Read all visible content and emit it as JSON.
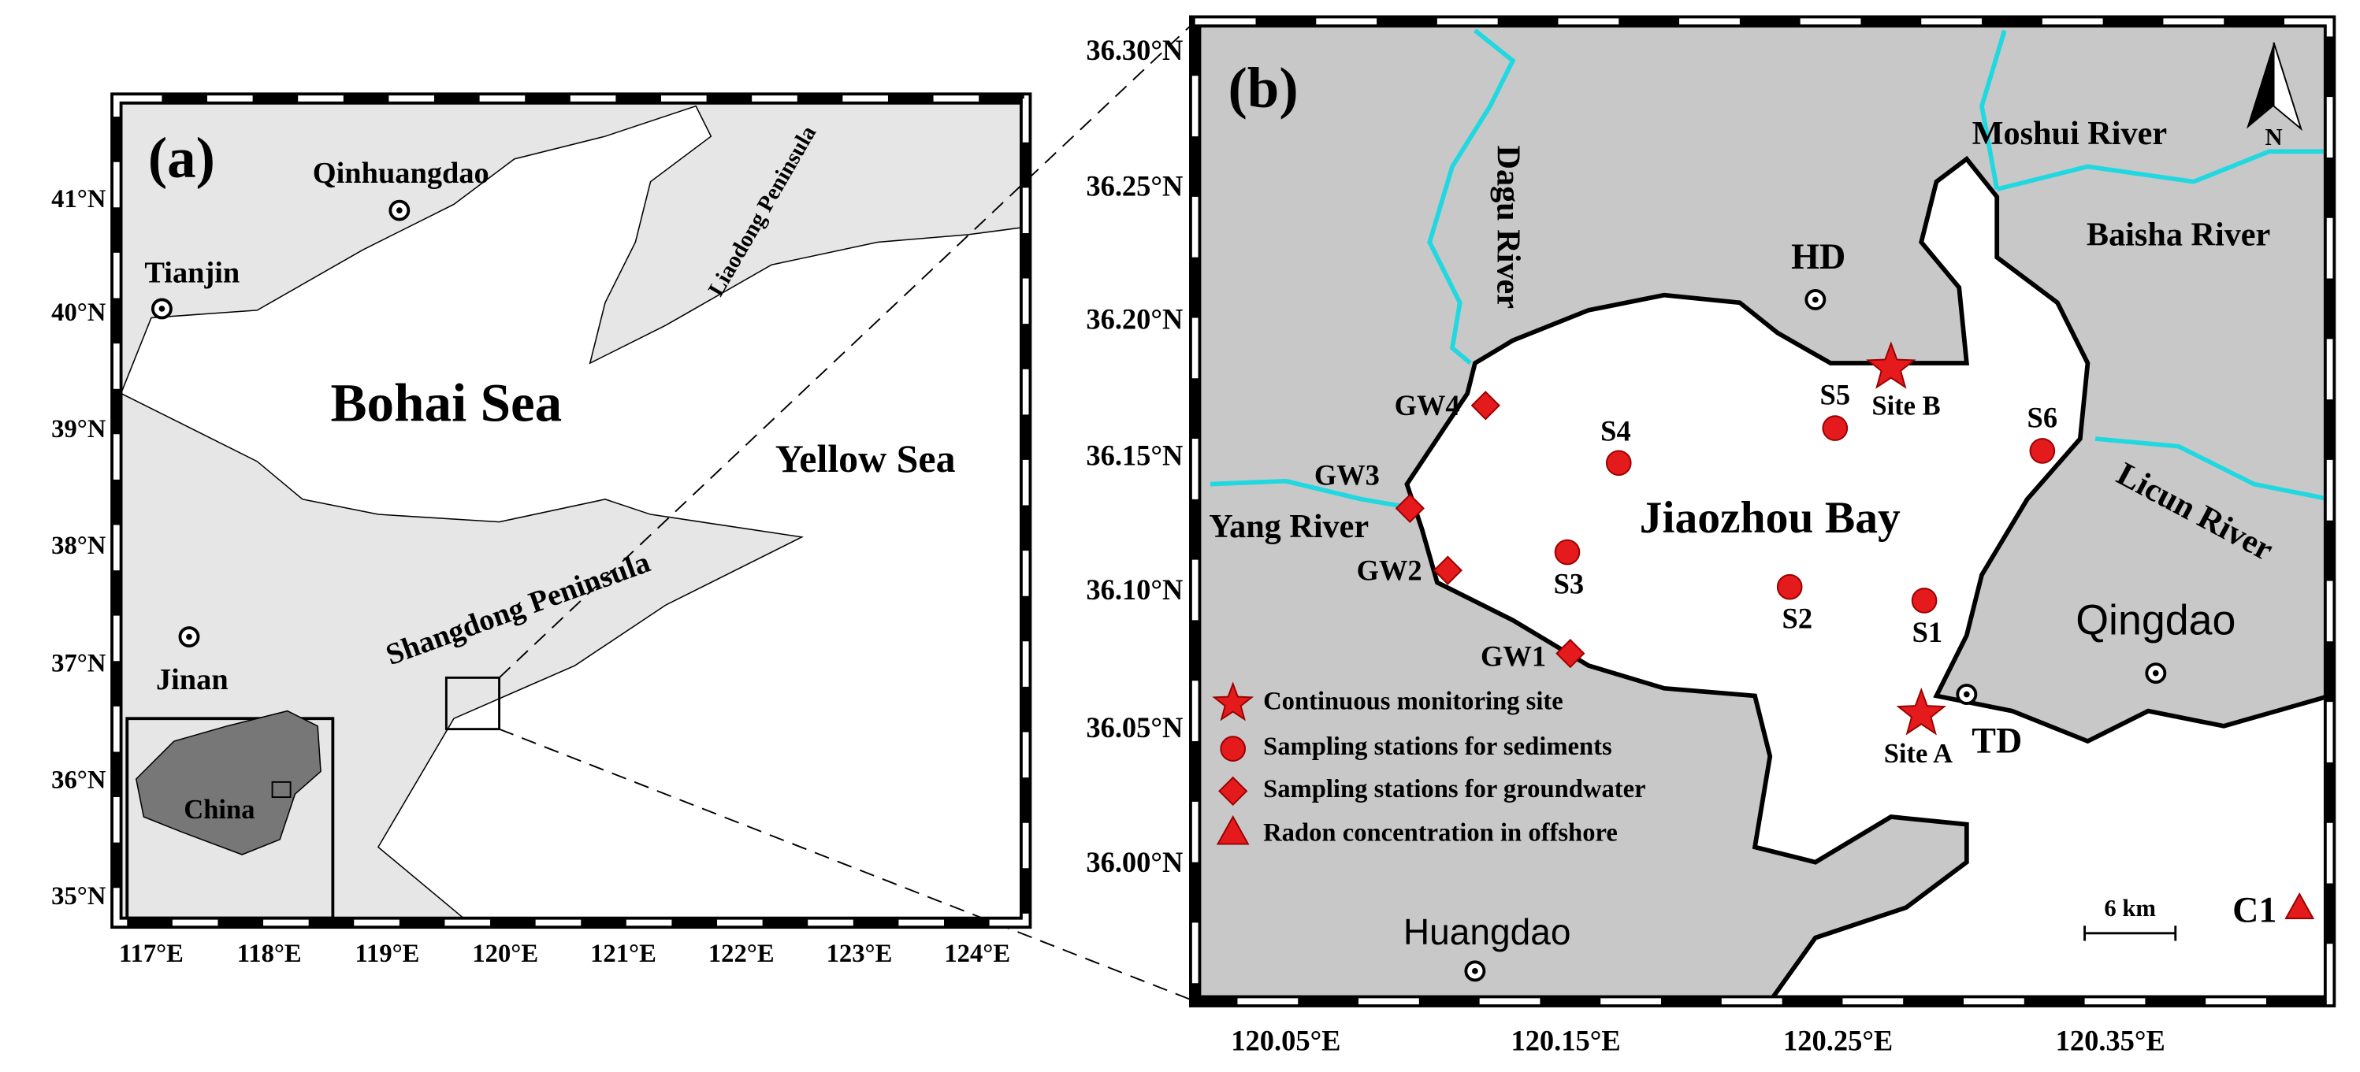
{
  "panel_a": {
    "label": "(a)",
    "lat_ticks": [
      "41°N",
      "40°N",
      "39°N",
      "38°N",
      "37°N",
      "36°N",
      "35°N"
    ],
    "lon_ticks": [
      "117°E",
      "118°E",
      "119°E",
      "120°E",
      "121°E",
      "122°E",
      "123°E",
      "124°E"
    ],
    "places": [
      "Qinhuangdao",
      "Tianjin",
      "Jinan"
    ],
    "seas": [
      "Bohai Sea",
      "Yellow Sea"
    ],
    "peninsulas": [
      "Liaodong Peninsula",
      "Shangdong Peninsula"
    ],
    "inset": "China"
  },
  "panel_b": {
    "label": "(b)",
    "lat_ticks": [
      "36.30°N",
      "36.25°N",
      "36.20°N",
      "36.15°N",
      "36.10°N",
      "36.05°N",
      "36.00°N"
    ],
    "lon_ticks": [
      "120.05°E",
      "120.15°E",
      "120.25°E",
      "120.35°E"
    ],
    "north": "N",
    "bay": "Jiaozhou Bay",
    "rivers": [
      "Dagu River",
      "Moshui River",
      "Baisha River",
      "Licun River",
      "Yang River"
    ],
    "towns": [
      "HD",
      "TD",
      "Qingdao",
      "Huangdao"
    ],
    "sites": [
      "Site A",
      "Site B"
    ],
    "sediment_stations": [
      "S1",
      "S2",
      "S3",
      "S4",
      "S5",
      "S6"
    ],
    "groundwater_stations": [
      "GW1",
      "GW2",
      "GW3",
      "GW4"
    ],
    "offshore": "C1",
    "legend": [
      "Continuous monitoring site",
      "Sampling stations for sediments",
      "Sampling stations for groundwater",
      "Radon concentration in offshore"
    ],
    "scale": "6 km"
  }
}
